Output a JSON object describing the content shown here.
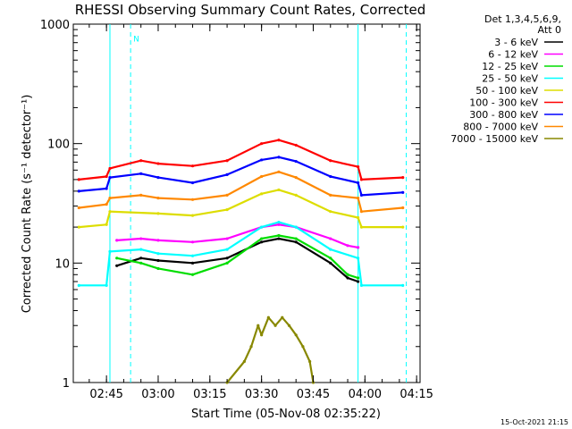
{
  "chart_data": {
    "type": "line",
    "title": "RHESSI Observing Summary Count Rates, Corrected",
    "xlabel": "Start Time (05-Nov-08 02:35:22)",
    "ylabel": "Corrected Count Rate (s⁻¹ detector⁻¹)",
    "ylog": true,
    "ylim": [
      1,
      1000
    ],
    "xlim": [
      "02:35:22",
      "04:16:00"
    ],
    "x_ticks": [
      "02:45",
      "03:00",
      "03:15",
      "03:30",
      "03:45",
      "04:00",
      "04:15"
    ],
    "y_ticks": [
      "1",
      "10",
      "100",
      "1000"
    ],
    "legend_header": [
      "Det 1,3,4,5,6,9,",
      "Att 0"
    ],
    "legend_position": "right",
    "series": [
      {
        "name": "3 - 6 keV",
        "color": "#000000",
        "x": [
          "02:48",
          "02:55",
          "03:00",
          "03:10",
          "03:20",
          "03:30",
          "03:35",
          "03:40",
          "03:50",
          "03:55",
          "03:58"
        ],
        "y": [
          9.5,
          11,
          10.5,
          10,
          11,
          15,
          16,
          15,
          10,
          7.5,
          7
        ]
      },
      {
        "name": "6 - 12 keV",
        "color": "#ff00ff",
        "x": [
          "02:48",
          "02:55",
          "03:00",
          "03:10",
          "03:20",
          "03:30",
          "03:35",
          "03:40",
          "03:50",
          "03:55",
          "03:58"
        ],
        "y": [
          15.5,
          16,
          15.5,
          15,
          16,
          20,
          21,
          20,
          16,
          14,
          13.5
        ]
      },
      {
        "name": "12 - 25 keV",
        "color": "#00dd00",
        "x": [
          "02:48",
          "02:55",
          "03:00",
          "03:10",
          "03:20",
          "03:30",
          "03:35",
          "03:40",
          "03:50",
          "03:55",
          "03:58"
        ],
        "y": [
          11,
          10,
          9,
          8,
          10,
          16,
          17,
          16,
          11,
          8,
          7.5
        ]
      },
      {
        "name": "25 - 50 keV",
        "color": "#00ffff",
        "x": [
          "02:37",
          "02:45",
          "02:46",
          "02:55",
          "03:00",
          "03:10",
          "03:20",
          "03:30",
          "03:35",
          "03:40",
          "03:50",
          "03:58",
          "03:59",
          "04:11"
        ],
        "y": [
          6.5,
          6.5,
          12.5,
          13,
          12,
          11.5,
          13,
          20,
          22,
          20,
          13,
          11,
          6.5,
          6.5
        ]
      },
      {
        "name": "50 - 100 keV",
        "color": "#dddd00",
        "x": [
          "02:37",
          "02:45",
          "02:46",
          "03:00",
          "03:10",
          "03:20",
          "03:30",
          "03:35",
          "03:40",
          "03:50",
          "03:58",
          "03:59",
          "04:11"
        ],
        "y": [
          20,
          21,
          27,
          26,
          25,
          28,
          38,
          41,
          37,
          27,
          24,
          20,
          20
        ]
      },
      {
        "name": "100 - 300 keV",
        "color": "#ff0000",
        "x": [
          "02:37",
          "02:45",
          "02:46",
          "02:55",
          "03:00",
          "03:10",
          "03:20",
          "03:30",
          "03:35",
          "03:40",
          "03:50",
          "03:58",
          "03:59",
          "04:11"
        ],
        "y": [
          50,
          53,
          62,
          72,
          68,
          65,
          72,
          100,
          107,
          97,
          72,
          64,
          50,
          52
        ]
      },
      {
        "name": "300 - 800 keV",
        "color": "#0000ff",
        "x": [
          "02:37",
          "02:45",
          "02:46",
          "02:55",
          "03:00",
          "03:10",
          "03:20",
          "03:30",
          "03:35",
          "03:40",
          "03:50",
          "03:58",
          "03:59",
          "04:11"
        ],
        "y": [
          40,
          42,
          52,
          56,
          52,
          47,
          55,
          73,
          77,
          71,
          53,
          47,
          37,
          39
        ]
      },
      {
        "name": "800 - 7000 keV",
        "color": "#ff8800",
        "x": [
          "02:37",
          "02:45",
          "02:46",
          "02:55",
          "03:00",
          "03:10",
          "03:20",
          "03:30",
          "03:35",
          "03:40",
          "03:50",
          "03:58",
          "03:59",
          "04:11"
        ],
        "y": [
          29,
          31,
          35,
          37,
          35,
          34,
          37,
          53,
          58,
          52,
          37,
          35,
          27,
          29
        ]
      },
      {
        "name": "7000 - 15000 keV",
        "color": "#888800",
        "x": [
          "03:20",
          "03:25",
          "03:27",
          "03:29",
          "03:30",
          "03:32",
          "03:34",
          "03:36",
          "03:38",
          "03:40",
          "03:42",
          "03:44",
          "03:45"
        ],
        "y": [
          1,
          1.5,
          2,
          3,
          2.5,
          3.5,
          3,
          3.5,
          3,
          2.5,
          2,
          1.5,
          1
        ]
      }
    ],
    "annotations": [
      {
        "text": "N",
        "color": "#00ffff",
        "x": "02:52",
        "y": 750
      }
    ],
    "footer": "15-Oct-2021 21:15"
  }
}
